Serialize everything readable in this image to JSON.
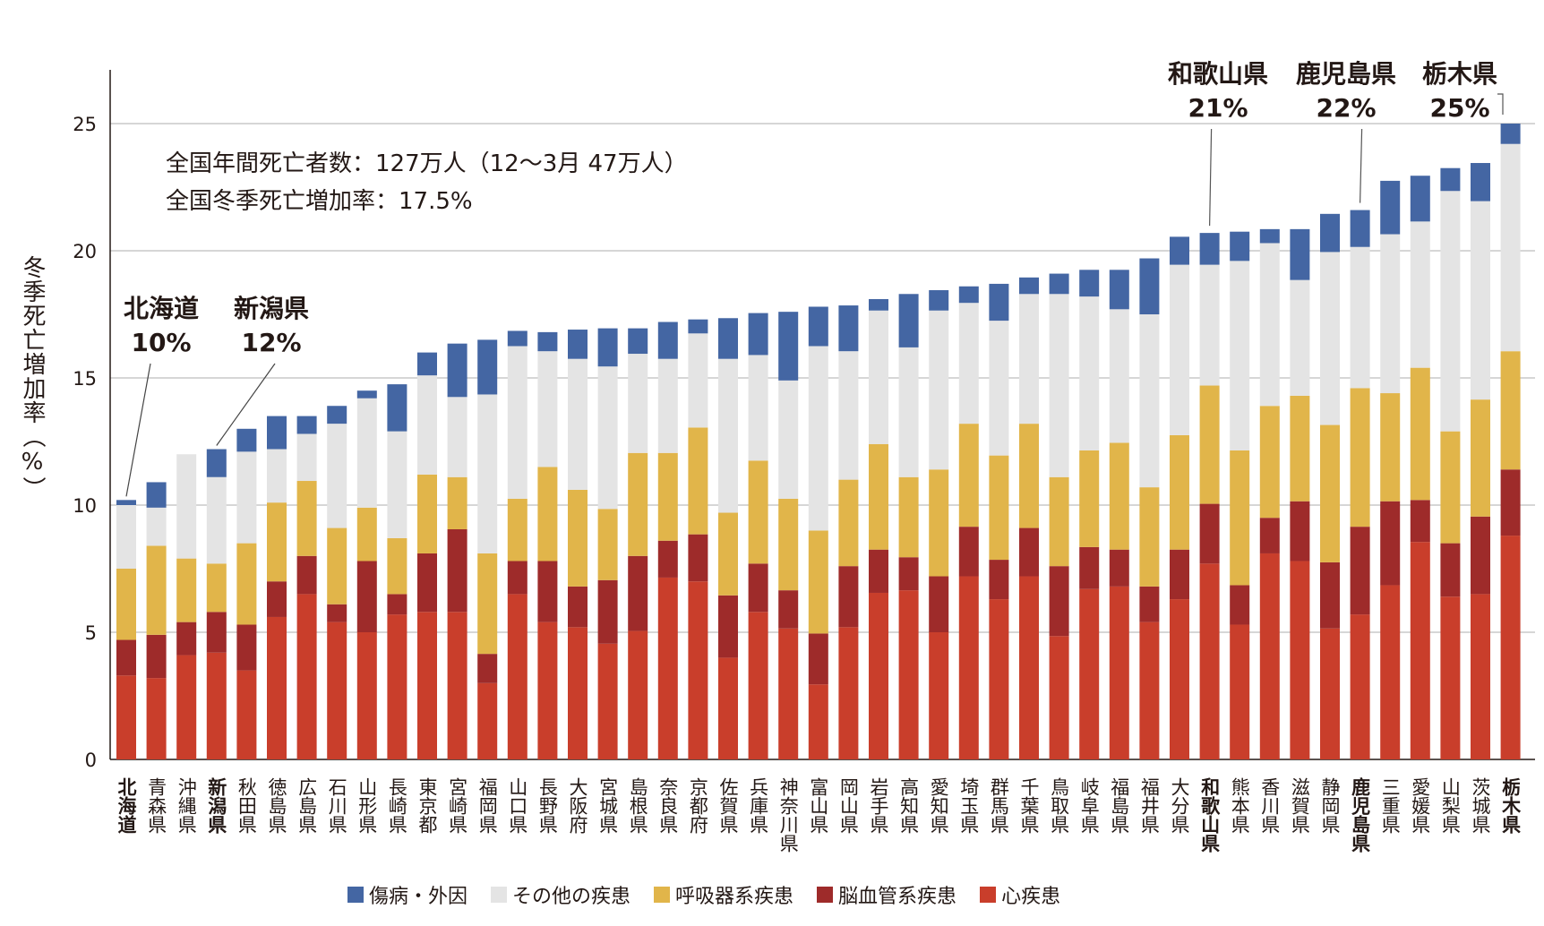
{
  "chart_data": {
    "type": "bar",
    "stacked": true,
    "ylabel": "冬季死亡増加率（%）",
    "ylim": [
      0,
      25
    ],
    "yticks": [
      "0",
      "5",
      "10",
      "15",
      "20",
      "25"
    ],
    "grid": true,
    "legend_position": "bottom",
    "summary": [
      "全国年間死亡者数：127万人（12〜3月 47万人）",
      "全国冬季死亡増加率：17.5%"
    ],
    "categories": [
      "北海道",
      "青森県",
      "沖縄県",
      "新潟県",
      "秋田県",
      "徳島県",
      "広島県",
      "石川県",
      "山形県",
      "長崎県",
      "東京都",
      "宮崎県",
      "福岡県",
      "山口県",
      "長野県",
      "大阪府",
      "宮城県",
      "島根県",
      "奈良県",
      "京都府",
      "佐賀県",
      "兵庫県",
      "神奈川県",
      "富山県",
      "岡山県",
      "岩手県",
      "高知県",
      "愛知県",
      "埼玉県",
      "群馬県",
      "千葉県",
      "鳥取県",
      "岐阜県",
      "福島県",
      "福井県",
      "大分県",
      "和歌山県",
      "熊本県",
      "香川県",
      "滋賀県",
      "静岡県",
      "鹿児島県",
      "三重県",
      "愛媛県",
      "山梨県",
      "茨城県",
      "栃木県"
    ],
    "highlighted": [
      "北海道",
      "新潟県",
      "和歌山県",
      "鹿児島県",
      "栃木県"
    ],
    "series": [
      {
        "name": "心疾患",
        "color": "#c93e2b",
        "values": [
          3.3,
          3.2,
          4.1,
          4.2,
          3.5,
          5.6,
          6.5,
          5.4,
          5.0,
          5.7,
          5.8,
          5.8,
          3.0,
          6.5,
          5.4,
          5.2,
          4.55,
          5.05,
          7.15,
          7.0,
          4.0,
          5.8,
          5.15,
          2.95,
          5.2,
          6.55,
          6.65,
          5.0,
          7.2,
          6.3,
          7.2,
          4.85,
          6.7,
          6.8,
          5.4,
          6.3,
          7.7,
          5.3,
          8.1,
          7.8,
          5.15,
          5.7,
          6.85,
          8.55,
          6.4,
          6.5,
          8.8
        ]
      },
      {
        "name": "脳血管系疾患",
        "color": "#9e2b2a",
        "values": [
          1.4,
          1.7,
          1.3,
          1.6,
          1.8,
          1.4,
          1.5,
          0.7,
          2.8,
          0.8,
          2.3,
          3.25,
          1.15,
          1.3,
          2.4,
          1.6,
          2.5,
          2.95,
          1.45,
          1.85,
          2.45,
          1.9,
          1.5,
          2.0,
          2.4,
          1.7,
          1.3,
          2.2,
          1.95,
          1.55,
          1.9,
          2.75,
          1.65,
          1.45,
          1.4,
          1.95,
          2.35,
          1.55,
          1.4,
          2.35,
          2.6,
          3.45,
          3.3,
          1.65,
          2.1,
          3.05,
          2.6
        ]
      },
      {
        "name": "呼吸器系疾患",
        "color": "#e1b54a",
        "values": [
          2.8,
          3.5,
          2.5,
          1.9,
          3.2,
          3.1,
          2.95,
          3.0,
          2.1,
          2.2,
          3.1,
          2.05,
          3.95,
          2.45,
          3.7,
          3.8,
          2.8,
          4.05,
          3.45,
          4.2,
          3.25,
          4.05,
          3.6,
          4.05,
          3.4,
          4.15,
          3.15,
          4.2,
          4.05,
          4.1,
          4.1,
          3.5,
          3.8,
          4.2,
          3.9,
          4.5,
          4.65,
          5.3,
          4.4,
          4.15,
          5.4,
          5.45,
          4.25,
          5.2,
          4.4,
          4.6,
          4.65
        ]
      },
      {
        "name": "その他の疾患",
        "color": "#e4e4e4",
        "values": [
          2.5,
          1.5,
          4.1,
          3.4,
          3.6,
          2.1,
          1.85,
          4.1,
          4.3,
          4.2,
          3.9,
          3.15,
          6.25,
          6.0,
          4.55,
          5.15,
          5.6,
          3.9,
          3.7,
          3.7,
          6.05,
          4.15,
          4.65,
          7.25,
          5.05,
          5.25,
          5.1,
          6.25,
          4.75,
          5.3,
          5.1,
          7.2,
          6.05,
          5.25,
          6.8,
          6.7,
          4.75,
          7.45,
          6.4,
          4.55,
          6.8,
          5.55,
          6.25,
          5.75,
          9.45,
          7.8,
          8.15
        ]
      },
      {
        "name": "傷病・外因",
        "color": "#4466a3",
        "values": [
          0.2,
          1.0,
          0.0,
          1.1,
          0.9,
          1.3,
          0.7,
          0.7,
          0.3,
          1.85,
          0.9,
          2.1,
          2.15,
          0.6,
          0.75,
          1.15,
          1.5,
          1.0,
          1.45,
          0.55,
          1.6,
          1.65,
          2.7,
          1.55,
          1.8,
          0.45,
          2.1,
          0.8,
          0.65,
          1.45,
          0.65,
          0.8,
          1.05,
          1.55,
          2.2,
          1.1,
          1.25,
          1.15,
          0.55,
          2.0,
          1.5,
          1.45,
          2.1,
          1.8,
          0.9,
          1.5,
          0.8
        ]
      }
    ],
    "legend_order": [
      "傷病・外因",
      "その他の疾患",
      "呼吸器系疾患",
      "脳血管系疾患",
      "心疾患"
    ],
    "annotations": [
      {
        "name": "北海道",
        "value": "10%"
      },
      {
        "name": "新潟県",
        "value": "12%"
      },
      {
        "name": "和歌山県",
        "value": "21%"
      },
      {
        "name": "鹿児島県",
        "value": "22%"
      },
      {
        "name": "栃木県",
        "value": "25%"
      }
    ]
  }
}
